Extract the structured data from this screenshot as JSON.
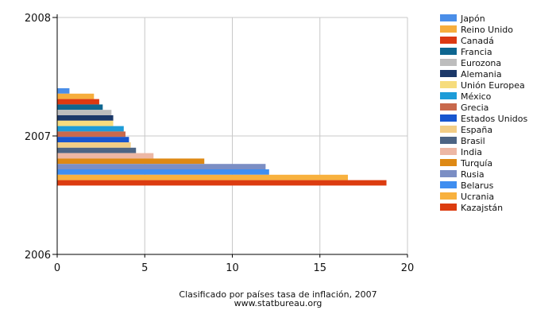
{
  "chart_data": {
    "type": "bar",
    "orientation": "horizontal",
    "title": "Clasificado por países tasa de inflación, 2007",
    "subtitle": "www.statbureau.org",
    "xlabel": "",
    "ylabel": "",
    "xlim": [
      0,
      20
    ],
    "x_ticks": [
      "0",
      "5",
      "10",
      "15",
      "20"
    ],
    "y_ticks": [
      "2006",
      "2007",
      "2008"
    ],
    "ylim": [
      2006,
      2008
    ],
    "category": "2007",
    "grid": true,
    "legend_position": "right",
    "series": [
      {
        "name": "Japón",
        "value": 0.7,
        "color": "#4a8ee8"
      },
      {
        "name": "Reino Unido",
        "value": 2.1,
        "color": "#f6ad3c"
      },
      {
        "name": "Canadá",
        "value": 2.4,
        "color": "#dc3912"
      },
      {
        "name": "Francia",
        "value": 2.6,
        "color": "#0e6690"
      },
      {
        "name": "Eurozona",
        "value": 3.1,
        "color": "#bdbdbd"
      },
      {
        "name": "Alemania",
        "value": 3.2,
        "color": "#1b3869"
      },
      {
        "name": "Unión Europea",
        "value": 3.2,
        "color": "#f6dc7d"
      },
      {
        "name": "México",
        "value": 3.8,
        "color": "#1d9cd8"
      },
      {
        "name": "Grecia",
        "value": 3.9,
        "color": "#c8694c"
      },
      {
        "name": "Estados Unidos",
        "value": 4.1,
        "color": "#1756cf"
      },
      {
        "name": "España",
        "value": 4.2,
        "color": "#f2cd85"
      },
      {
        "name": "Brasil",
        "value": 4.5,
        "color": "#4c6484"
      },
      {
        "name": "India",
        "value": 5.5,
        "color": "#edb7a4"
      },
      {
        "name": "Turquía",
        "value": 8.4,
        "color": "#de8914"
      },
      {
        "name": "Rusia",
        "value": 11.9,
        "color": "#7b8ec4"
      },
      {
        "name": "Belarus",
        "value": 12.1,
        "color": "#3f8ef0"
      },
      {
        "name": "Ucrania",
        "value": 16.6,
        "color": "#f8b13e"
      },
      {
        "name": "Kazajstán",
        "value": 18.8,
        "color": "#dc3c10"
      }
    ]
  }
}
